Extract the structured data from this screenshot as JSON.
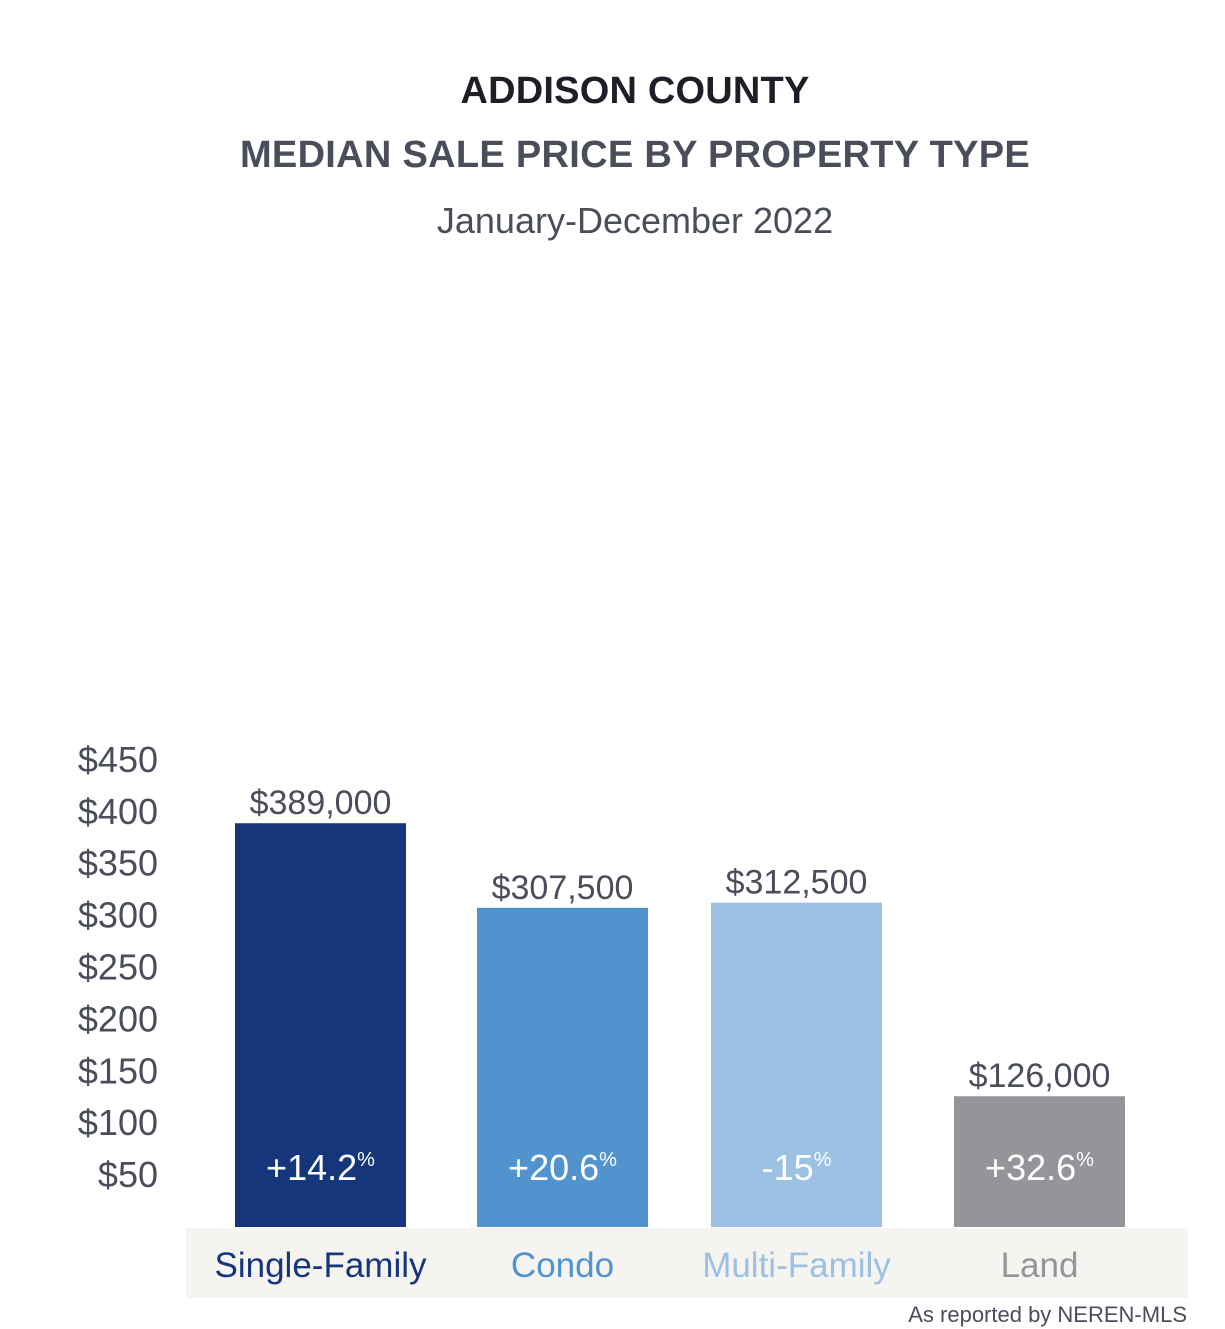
{
  "header": {
    "title": "ADDISON COUNTY",
    "subtitle": "MEDIAN SALE PRICE BY PROPERTY TYPE",
    "period": "January-December 2022"
  },
  "footer": {
    "source_note": "As reported by NEREN-MLS"
  },
  "chart_data": {
    "type": "bar",
    "title": "MEDIAN SALE PRICE BY PROPERTY TYPE",
    "categories": [
      "Single-Family",
      "Condo",
      "Multi-Family",
      "Land"
    ],
    "values": [
      389,
      307.5,
      312.5,
      126
    ],
    "value_labels": [
      "$389,000",
      "$307,500",
      "$312,500",
      "$126,000"
    ],
    "change_labels": [
      "+14.2",
      "+20.6",
      "-15",
      "+32.6"
    ],
    "change_unit": "%",
    "colors": [
      "#15367b",
      "#5193cf",
      "#9cc1e3",
      "#949598"
    ],
    "category_label_colors": [
      "#15367b",
      "#5193cf",
      "#9cc1e3",
      "#949598"
    ],
    "y_ticks": [
      "$50",
      "$100",
      "$150",
      "$200",
      "$250",
      "$300",
      "$350",
      "$400",
      "$450"
    ],
    "y_tick_values": [
      50,
      100,
      150,
      200,
      250,
      300,
      350,
      400,
      450
    ],
    "ylim": [
      0,
      450
    ],
    "grid": false,
    "xlabel": "",
    "ylabel": "",
    "axis_band_color": "#f5f4f1"
  }
}
